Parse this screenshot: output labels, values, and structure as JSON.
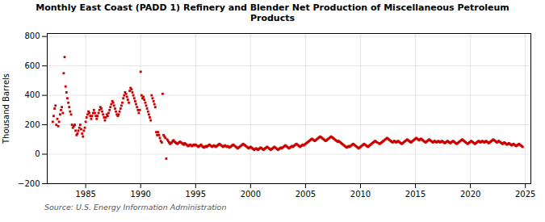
{
  "chart_data": {
    "type": "scatter",
    "title": "Monthly East Coast (PADD 1) Refinery and Blender Net Production of Miscellaneous Petroleum\nProducts",
    "ylabel": "Thousand Barrels",
    "source": "Source: U.S. Energy Information Administration",
    "xlim": [
      1981.5,
      2025.5
    ],
    "ylim": [
      -200,
      820
    ],
    "xticks": [
      1985,
      1990,
      1995,
      2000,
      2005,
      2010,
      2015,
      2020,
      2025
    ],
    "yticks": [
      -200,
      0,
      200,
      400,
      600,
      800
    ],
    "grid": true,
    "color": "#cc0000",
    "marker": "square",
    "x": [
      1982.0,
      1982.08,
      1982.17,
      1982.25,
      1982.33,
      1982.42,
      1982.5,
      1982.58,
      1982.67,
      1982.75,
      1982.83,
      1982.92,
      1983.0,
      1983.08,
      1983.17,
      1983.25,
      1983.33,
      1983.42,
      1983.5,
      1983.58,
      1983.67,
      1983.75,
      1983.83,
      1983.92,
      1984.0,
      1984.08,
      1984.17,
      1984.25,
      1984.33,
      1984.42,
      1984.5,
      1984.58,
      1984.67,
      1984.75,
      1984.83,
      1984.92,
      1985.0,
      1985.08,
      1985.17,
      1985.25,
      1985.33,
      1985.42,
      1985.5,
      1985.58,
      1985.67,
      1985.75,
      1985.83,
      1985.92,
      1986.0,
      1986.08,
      1986.17,
      1986.25,
      1986.33,
      1986.42,
      1986.5,
      1986.58,
      1986.67,
      1986.75,
      1986.83,
      1986.92,
      1987.0,
      1987.08,
      1987.17,
      1987.25,
      1987.33,
      1987.42,
      1987.5,
      1987.58,
      1987.67,
      1987.75,
      1987.83,
      1987.92,
      1988.0,
      1988.08,
      1988.17,
      1988.25,
      1988.33,
      1988.42,
      1988.5,
      1988.58,
      1988.67,
      1988.75,
      1988.83,
      1988.92,
      1989.0,
      1989.08,
      1989.17,
      1989.25,
      1989.33,
      1989.42,
      1989.5,
      1989.58,
      1989.67,
      1989.75,
      1989.83,
      1989.92,
      1990.0,
      1990.08,
      1990.17,
      1990.25,
      1990.33,
      1990.42,
      1990.5,
      1990.58,
      1990.67,
      1990.75,
      1990.83,
      1990.92,
      1991.0,
      1991.08,
      1991.17,
      1991.25,
      1991.33,
      1991.42,
      1991.5,
      1991.58,
      1991.67,
      1991.75,
      1991.83,
      1991.92,
      1992.0,
      1992.08,
      1992.17,
      1992.25,
      1992.33,
      1992.42,
      1992.5,
      1992.58,
      1992.67,
      1992.75,
      1992.83,
      1992.92,
      1993.0,
      1993.08,
      1993.17,
      1993.25,
      1993.33,
      1993.42,
      1993.5,
      1993.58,
      1993.67,
      1993.75,
      1993.83,
      1993.92,
      1994.0,
      1994.08,
      1994.17,
      1994.25,
      1994.33,
      1994.42,
      1994.5,
      1994.58,
      1994.67,
      1994.75,
      1994.83,
      1994.92,
      1995.0,
      1995.08,
      1995.17,
      1995.25,
      1995.33,
      1995.42,
      1995.5,
      1995.58,
      1995.67,
      1995.75,
      1995.83,
      1995.92,
      1996.0,
      1996.08,
      1996.17,
      1996.25,
      1996.33,
      1996.42,
      1996.5,
      1996.58,
      1996.67,
      1996.75,
      1996.83,
      1996.92,
      1997.0,
      1997.08,
      1997.17,
      1997.25,
      1997.33,
      1997.42,
      1997.5,
      1997.58,
      1997.67,
      1997.75,
      1997.83,
      1997.92,
      1998.0,
      1998.08,
      1998.17,
      1998.25,
      1998.33,
      1998.42,
      1998.5,
      1998.58,
      1998.67,
      1998.75,
      1998.83,
      1998.92,
      1999.0,
      1999.08,
      1999.17,
      1999.25,
      1999.33,
      1999.42,
      1999.5,
      1999.58,
      1999.67,
      1999.75,
      1999.83,
      1999.92,
      2000.0,
      2000.08,
      2000.17,
      2000.25,
      2000.33,
      2000.42,
      2000.5,
      2000.58,
      2000.67,
      2000.75,
      2000.83,
      2000.92,
      2001.0,
      2001.08,
      2001.17,
      2001.25,
      2001.33,
      2001.42,
      2001.5,
      2001.58,
      2001.67,
      2001.75,
      2001.83,
      2001.92,
      2002.0,
      2002.08,
      2002.17,
      2002.25,
      2002.33,
      2002.42,
      2002.5,
      2002.58,
      2002.67,
      2002.75,
      2002.83,
      2002.92,
      2003.0,
      2003.08,
      2003.17,
      2003.25,
      2003.33,
      2003.42,
      2003.5,
      2003.58,
      2003.67,
      2003.75,
      2003.83,
      2003.92,
      2004.0,
      2004.08,
      2004.17,
      2004.25,
      2004.33,
      2004.42,
      2004.5,
      2004.58,
      2004.67,
      2004.75,
      2004.83,
      2004.92,
      2005.0,
      2005.08,
      2005.17,
      2005.25,
      2005.33,
      2005.42,
      2005.5,
      2005.58,
      2005.67,
      2005.75,
      2005.83,
      2005.92,
      2006.0,
      2006.08,
      2006.17,
      2006.25,
      2006.33,
      2006.42,
      2006.5,
      2006.58,
      2006.67,
      2006.75,
      2006.83,
      2006.92,
      2007.0,
      2007.08,
      2007.17,
      2007.25,
      2007.33,
      2007.42,
      2007.5,
      2007.58,
      2007.67,
      2007.75,
      2007.83,
      2007.92,
      2008.0,
      2008.08,
      2008.17,
      2008.25,
      2008.33,
      2008.42,
      2008.5,
      2008.58,
      2008.67,
      2008.75,
      2008.83,
      2008.92,
      2009.0,
      2009.08,
      2009.17,
      2009.25,
      2009.33,
      2009.42,
      2009.5,
      2009.58,
      2009.67,
      2009.75,
      2009.83,
      2009.92,
      2010.0,
      2010.08,
      2010.17,
      2010.25,
      2010.33,
      2010.42,
      2010.5,
      2010.58,
      2010.67,
      2010.75,
      2010.83,
      2010.92,
      2011.0,
      2011.08,
      2011.17,
      2011.25,
      2011.33,
      2011.42,
      2011.5,
      2011.67,
      2011.75,
      2011.83,
      2011.92,
      2012.0,
      2012.08,
      2012.17,
      2012.25,
      2012.33,
      2012.42,
      2012.5,
      2012.58,
      2012.67,
      2012.75,
      2012.83,
      2012.92,
      2013.0,
      2013.08,
      2013.17,
      2013.25,
      2013.33,
      2013.42,
      2013.5,
      2013.58,
      2013.67,
      2013.75,
      2013.83,
      2013.92,
      2014.0,
      2014.08,
      2014.17,
      2014.25,
      2014.33,
      2014.42,
      2014.5,
      2014.58,
      2014.67,
      2014.75,
      2014.83,
      2014.92,
      2015.0,
      2015.08,
      2015.17,
      2015.25,
      2015.33,
      2015.42,
      2015.5,
      2015.58,
      2015.67,
      2015.75,
      2015.83,
      2015.92,
      2016.0,
      2016.08,
      2016.17,
      2016.25,
      2016.33,
      2016.42,
      2016.5,
      2016.58,
      2016.67,
      2016.75,
      2016.83,
      2016.92,
      2017.0,
      2017.08,
      2017.17,
      2017.25,
      2017.33,
      2017.42,
      2017.5,
      2017.58,
      2017.67,
      2017.75,
      2017.83,
      2017.92,
      2018.0,
      2018.08,
      2018.17,
      2018.25,
      2018.33,
      2018.42,
      2018.5,
      2018.58,
      2018.67,
      2018.75,
      2018.83,
      2018.92,
      2019.0,
      2019.08,
      2019.17,
      2019.25,
      2019.33,
      2019.42,
      2019.5,
      2019.58,
      2019.67,
      2019.75,
      2019.83,
      2019.92,
      2020.0,
      2020.08,
      2020.17,
      2020.25,
      2020.33,
      2020.42,
      2020.5,
      2020.58,
      2020.67,
      2020.75,
      2020.83,
      2020.92,
      2021.0,
      2021.08,
      2021.17,
      2021.25,
      2021.33,
      2021.42,
      2021.5,
      2021.58,
      2021.67,
      2021.75,
      2021.83,
      2021.92,
      2022.0,
      2022.08,
      2022.17,
      2022.25,
      2022.33,
      2022.42,
      2022.5,
      2022.58,
      2022.67,
      2022.75,
      2022.83,
      2022.92,
      2023.0,
      2023.08,
      2023.17,
      2023.25,
      2023.33,
      2023.42,
      2023.5,
      2023.58,
      2023.67,
      2023.75,
      2023.83,
      2023.92,
      2024.0,
      2024.08,
      2024.17,
      2024.25,
      2024.33,
      2024.42,
      2024.5,
      2024.58,
      2024.67,
      2024.75
    ],
    "values": [
      220,
      260,
      310,
      330,
      200,
      240,
      190,
      220,
      270,
      300,
      320,
      280,
      550,
      660,
      460,
      420,
      380,
      350,
      320,
      290,
      270,
      200,
      180,
      190,
      200,
      160,
      130,
      140,
      160,
      180,
      200,
      170,
      140,
      120,
      160,
      180,
      220,
      250,
      270,
      290,
      280,
      260,
      240,
      260,
      280,
      300,
      280,
      260,
      240,
      260,
      280,
      300,
      320,
      310,
      290,
      270,
      250,
      230,
      250,
      270,
      260,
      280,
      300,
      320,
      340,
      360,
      350,
      330,
      310,
      290,
      270,
      260,
      270,
      290,
      310,
      330,
      350,
      380,
      400,
      420,
      410,
      390,
      370,
      350,
      430,
      450,
      440,
      420,
      400,
      380,
      360,
      340,
      320,
      300,
      280,
      300,
      560,
      400,
      380,
      390,
      370,
      350,
      330,
      310,
      290,
      270,
      250,
      230,
      400,
      380,
      360,
      340,
      320,
      150,
      130,
      150,
      130,
      110,
      90,
      80,
      410,
      130,
      120,
      110,
      -30,
      100,
      90,
      80,
      70,
      75,
      80,
      90,
      95,
      85,
      80,
      75,
      70,
      75,
      80,
      85,
      80,
      75,
      70,
      65,
      75,
      70,
      65,
      60,
      55,
      60,
      65,
      60,
      55,
      60,
      65,
      60,
      65,
      60,
      55,
      50,
      55,
      60,
      65,
      55,
      50,
      45,
      50,
      55,
      50,
      55,
      60,
      65,
      60,
      55,
      50,
      55,
      60,
      55,
      50,
      55,
      60,
      65,
      70,
      65,
      60,
      55,
      50,
      55,
      60,
      55,
      50,
      55,
      50,
      45,
      50,
      55,
      60,
      65,
      60,
      55,
      50,
      45,
      40,
      45,
      50,
      55,
      60,
      65,
      70,
      65,
      60,
      55,
      50,
      45,
      40,
      45,
      50,
      45,
      40,
      35,
      30,
      35,
      40,
      35,
      30,
      35,
      40,
      45,
      40,
      35,
      30,
      35,
      40,
      45,
      50,
      45,
      40,
      35,
      30,
      35,
      40,
      45,
      50,
      45,
      40,
      35,
      30,
      35,
      40,
      45,
      40,
      45,
      50,
      55,
      60,
      55,
      50,
      45,
      40,
      45,
      50,
      55,
      50,
      55,
      60,
      65,
      70,
      65,
      60,
      55,
      50,
      55,
      60,
      65,
      60,
      65,
      70,
      75,
      80,
      85,
      90,
      95,
      100,
      105,
      100,
      95,
      90,
      95,
      100,
      105,
      110,
      115,
      120,
      115,
      110,
      105,
      100,
      95,
      90,
      95,
      100,
      105,
      110,
      115,
      120,
      115,
      110,
      105,
      100,
      95,
      90,
      85,
      90,
      85,
      80,
      75,
      70,
      65,
      60,
      55,
      50,
      45,
      50,
      55,
      50,
      55,
      60,
      65,
      70,
      65,
      60,
      55,
      50,
      45,
      40,
      45,
      50,
      55,
      60,
      65,
      70,
      65,
      60,
      55,
      50,
      55,
      60,
      65,
      70,
      75,
      80,
      85,
      90,
      85,
      80,
      75,
      70,
      75,
      80,
      85,
      90,
      95,
      100,
      105,
      110,
      105,
      100,
      95,
      90,
      85,
      80,
      85,
      90,
      85,
      80,
      85,
      90,
      85,
      80,
      75,
      70,
      75,
      80,
      85,
      90,
      95,
      100,
      95,
      90,
      85,
      80,
      85,
      90,
      95,
      100,
      105,
      110,
      105,
      100,
      95,
      100,
      105,
      100,
      95,
      90,
      85,
      80,
      85,
      90,
      95,
      100,
      95,
      90,
      85,
      80,
      85,
      90,
      85,
      80,
      85,
      90,
      85,
      80,
      85,
      90,
      85,
      80,
      75,
      80,
      85,
      90,
      85,
      80,
      75,
      80,
      85,
      90,
      85,
      80,
      75,
      70,
      75,
      80,
      85,
      90,
      95,
      100,
      95,
      90,
      85,
      80,
      75,
      70,
      75,
      80,
      85,
      90,
      85,
      80,
      75,
      70,
      75,
      80,
      85,
      90,
      85,
      80,
      85,
      90,
      85,
      80,
      85,
      90,
      85,
      80,
      75,
      80,
      85,
      90,
      95,
      100,
      95,
      90,
      85,
      80,
      85,
      90,
      85,
      80,
      75,
      70,
      75,
      80,
      75,
      70,
      65,
      70,
      75,
      70,
      65,
      60,
      65,
      70,
      65,
      60,
      55,
      60,
      65,
      70,
      65,
      60,
      55,
      50
    ]
  }
}
